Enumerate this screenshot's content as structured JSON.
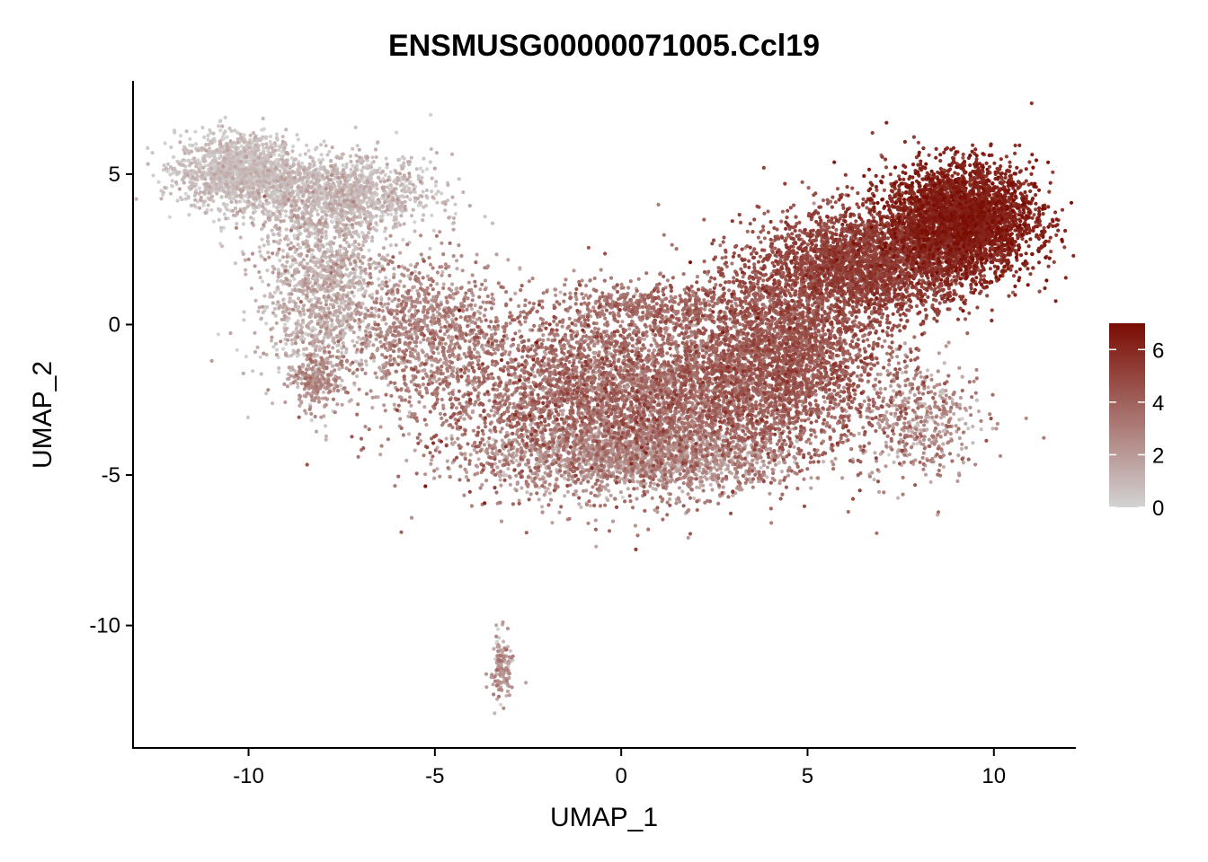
{
  "chart_data": {
    "type": "scatter",
    "title": "ENSMUSG00000071005.Ccl19",
    "xlabel": "UMAP_1",
    "ylabel": "UMAP_2",
    "xlim": [
      -13.1,
      12.2
    ],
    "ylim": [
      -14.1,
      8.1
    ],
    "x_ticks": [
      -10,
      -5,
      0,
      5,
      10
    ],
    "x_tick_labels": [
      "-10",
      "-5",
      "0",
      "5",
      "10"
    ],
    "y_ticks": [
      -10,
      -5,
      0,
      5
    ],
    "y_tick_labels": [
      "-10",
      "-5",
      "0",
      "5"
    ],
    "grid": false,
    "color_scale": {
      "low_color": "#d3d3d3",
      "high_color": "#7a0c02",
      "min": 0,
      "max": 7,
      "ticks": [
        0,
        2,
        4,
        6
      ],
      "tick_labels": [
        "0",
        "2",
        "4",
        "6"
      ],
      "legend_position": "right"
    },
    "regions": [
      {
        "name": "upper-left-lobe",
        "points": 1400,
        "center": [
          -10.3,
          5.1
        ],
        "spread": [
          0.8,
          0.6
        ],
        "expr_mean": 0.4,
        "expr_sd": 0.5
      },
      {
        "name": "upper-left-arm",
        "points": 1300,
        "center": [
          -7.6,
          4.4
        ],
        "spread": [
          1.3,
          0.6
        ],
        "expr_mean": 0.6,
        "expr_sd": 0.6
      },
      {
        "name": "left-column",
        "points": 1400,
        "center": [
          -8.0,
          1.2
        ],
        "spread": [
          0.9,
          1.6
        ],
        "expr_mean": 1.0,
        "expr_sd": 0.7
      },
      {
        "name": "left-bridge",
        "points": 900,
        "center": [
          -5.2,
          -0.2
        ],
        "spread": [
          1.0,
          1.2
        ],
        "expr_mean": 2.6,
        "expr_sd": 0.7
      },
      {
        "name": "central-body",
        "points": 5200,
        "center": [
          0.2,
          -2.4
        ],
        "spread": [
          2.6,
          1.5
        ],
        "expr_mean": 3.1,
        "expr_sd": 1.0
      },
      {
        "name": "center-bottom",
        "points": 1600,
        "center": [
          0.5,
          -4.4
        ],
        "spread": [
          2.0,
          0.6
        ],
        "expr_mean": 1.8,
        "expr_sd": 0.8
      },
      {
        "name": "center-top-bump",
        "points": 300,
        "center": [
          0.6,
          0.6
        ],
        "spread": [
          1.2,
          0.3
        ],
        "expr_mean": 3.3,
        "expr_sd": 0.6
      },
      {
        "name": "right-rise",
        "points": 2600,
        "center": [
          4.3,
          -0.8
        ],
        "spread": [
          1.4,
          1.5
        ],
        "expr_mean": 4.1,
        "expr_sd": 0.6
      },
      {
        "name": "upper-right-band",
        "points": 2600,
        "center": [
          6.6,
          2.0
        ],
        "spread": [
          1.4,
          0.9
        ],
        "expr_mean": 4.9,
        "expr_sd": 0.5
      },
      {
        "name": "upper-right-lobe",
        "points": 3400,
        "center": [
          9.1,
          3.5
        ],
        "spread": [
          1.0,
          0.9
        ],
        "expr_mean": 6.0,
        "expr_sd": 0.5
      },
      {
        "name": "right-tail",
        "points": 450,
        "center": [
          8.0,
          -3.2
        ],
        "spread": [
          0.8,
          1.0
        ],
        "expr_mean": 2.3,
        "expr_sd": 1.0
      },
      {
        "name": "left-bottom-tip",
        "points": 200,
        "center": [
          -8.2,
          -1.9
        ],
        "spread": [
          0.3,
          0.5
        ],
        "expr_mean": 2.4,
        "expr_sd": 0.6
      },
      {
        "name": "lower-island",
        "points": 140,
        "center": [
          -3.2,
          -11.4
        ],
        "spread": [
          0.15,
          0.55
        ],
        "expr_mean": 1.8,
        "expr_sd": 0.8
      },
      {
        "name": "lone-point",
        "points": 1,
        "center": [
          -5.9,
          -6.9
        ],
        "spread": [
          0.0,
          0.0
        ],
        "expr_mean": 4.0,
        "expr_sd": 0.0
      }
    ]
  }
}
